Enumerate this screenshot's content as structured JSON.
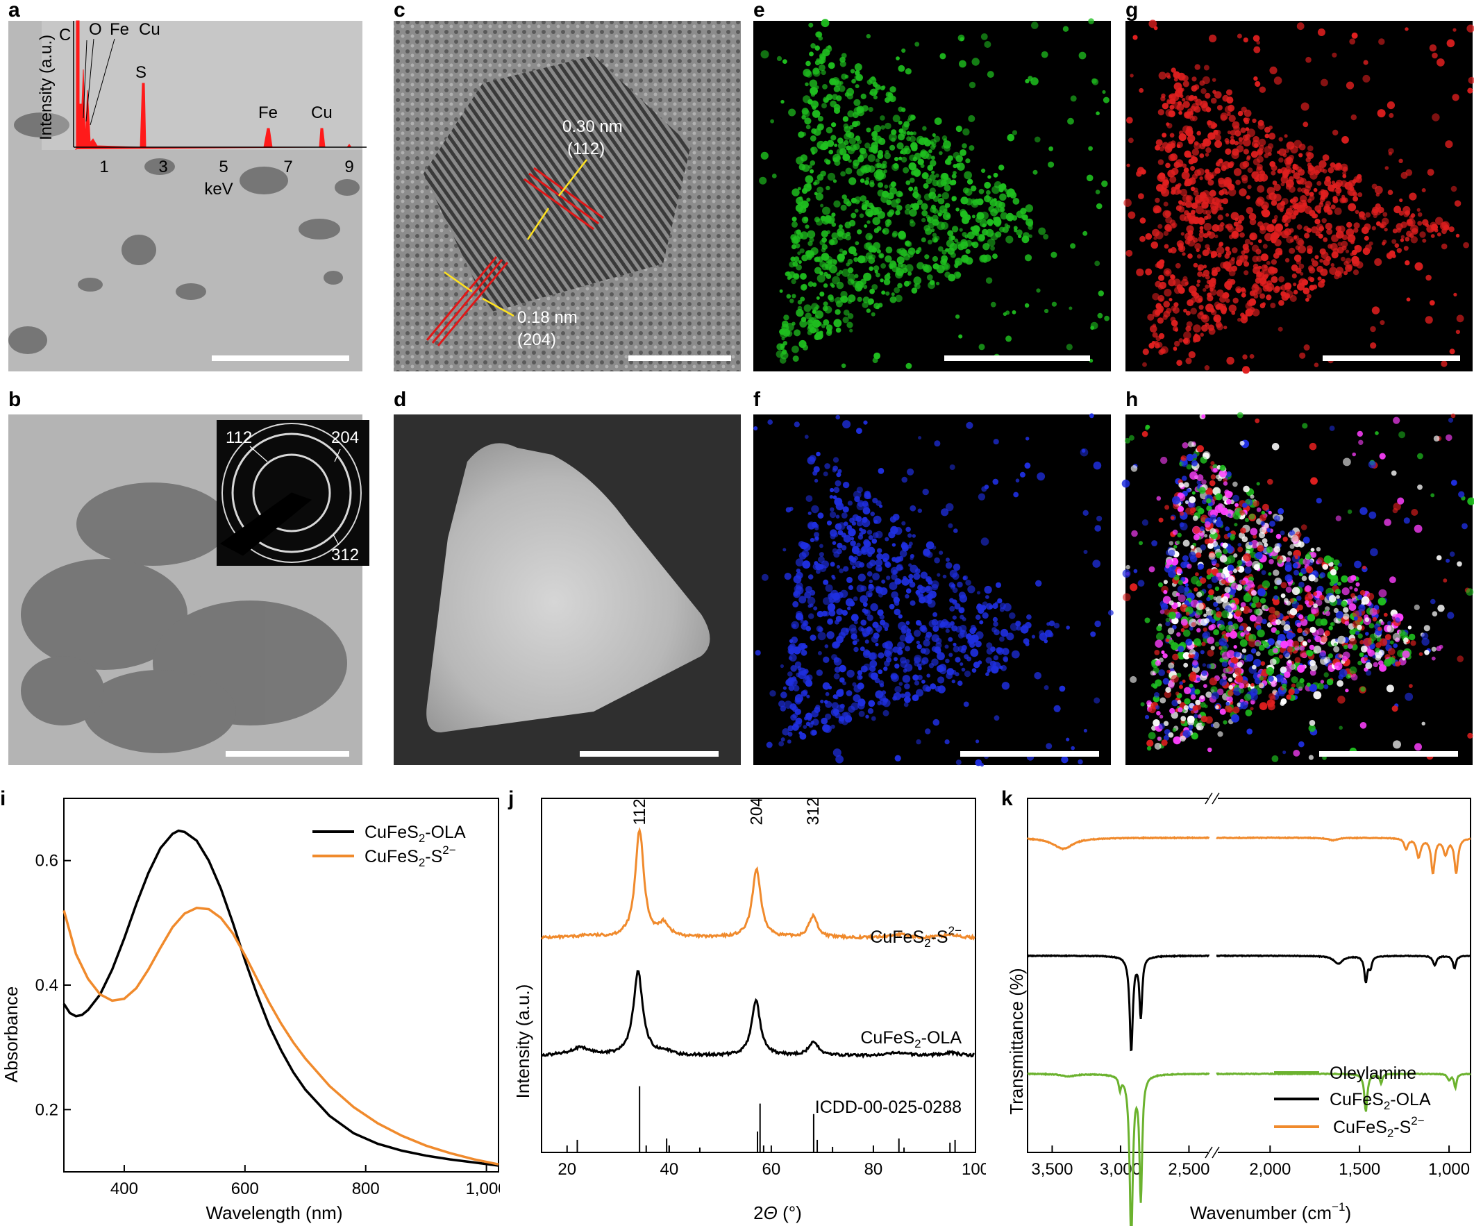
{
  "panels": {
    "a": {
      "label": "a",
      "inset_elements": [
        "C",
        "O",
        "Fe",
        "Cu",
        "S",
        "Fe",
        "Cu"
      ],
      "inset_ylabel": "Intensity (a.u.)",
      "inset_xlabel": "keV",
      "inset_ticks": [
        "1",
        "3",
        "5",
        "7",
        "9"
      ]
    },
    "b": {
      "label": "b",
      "saed_rings": [
        "112",
        "204",
        "312"
      ]
    },
    "c": {
      "label": "c",
      "fringe1": "0.30 nm",
      "fringe1_plane": "(112)",
      "fringe2": "0.18 nm",
      "fringe2_plane": "(204)"
    },
    "d": {
      "label": "d"
    },
    "e": {
      "label": "e",
      "color": "#1fbf1f"
    },
    "f": {
      "label": "f",
      "color": "#1f2fe0"
    },
    "g": {
      "label": "g",
      "color": "#e01f1f"
    },
    "h": {
      "label": "h"
    }
  },
  "chart_data": [
    {
      "panel": "i",
      "type": "line",
      "xlabel": "Wavelength (nm)",
      "ylabel": "Absorbance",
      "xlim": [
        300,
        1020
      ],
      "ylim": [
        0.1,
        0.7
      ],
      "xticks": [
        "400",
        "600",
        "800",
        "1,000"
      ],
      "yticks": [
        "0.2",
        "0.4",
        "0.6"
      ],
      "legend_position": "top-right",
      "series": [
        {
          "name": "CuFeS2-OLA",
          "name_main": "CuFeS",
          "name_sub": "2",
          "name_tail": "-OLA",
          "name_sup": "",
          "color": "#000000",
          "x": [
            300,
            310,
            320,
            330,
            340,
            360,
            380,
            400,
            420,
            440,
            460,
            480,
            490,
            500,
            520,
            540,
            560,
            580,
            600,
            620,
            640,
            660,
            680,
            700,
            740,
            780,
            820,
            860,
            900,
            940,
            980,
            1020
          ],
          "y": [
            0.37,
            0.355,
            0.35,
            0.352,
            0.36,
            0.385,
            0.425,
            0.475,
            0.53,
            0.58,
            0.62,
            0.643,
            0.648,
            0.646,
            0.632,
            0.6,
            0.555,
            0.5,
            0.44,
            0.385,
            0.335,
            0.295,
            0.26,
            0.232,
            0.19,
            0.162,
            0.145,
            0.134,
            0.126,
            0.12,
            0.115,
            0.11
          ]
        },
        {
          "name": "CuFeS2-S2−",
          "name_main": "CuFeS",
          "name_sub": "2",
          "name_tail": "-S",
          "name_sup": "2−",
          "color": "#f08a2c",
          "x": [
            300,
            320,
            340,
            360,
            380,
            400,
            420,
            440,
            460,
            480,
            500,
            520,
            540,
            560,
            580,
            600,
            620,
            640,
            660,
            680,
            700,
            740,
            780,
            820,
            860,
            900,
            940,
            980,
            1020
          ],
          "y": [
            0.52,
            0.45,
            0.41,
            0.385,
            0.375,
            0.378,
            0.395,
            0.425,
            0.46,
            0.493,
            0.515,
            0.524,
            0.522,
            0.508,
            0.483,
            0.448,
            0.41,
            0.372,
            0.338,
            0.308,
            0.282,
            0.238,
            0.204,
            0.178,
            0.158,
            0.142,
            0.13,
            0.12,
            0.112
          ]
        }
      ]
    },
    {
      "panel": "j",
      "type": "line",
      "xlabel": "2Θ (°)",
      "xlabel_main": "2",
      "xlabel_ital": "Θ",
      "xlabel_tail": " (°)",
      "ylabel": "Intensity (a.u.)",
      "xlim": [
        15,
        100
      ],
      "xticks": [
        "20",
        "40",
        "60",
        "80",
        "100"
      ],
      "peak_labels": [
        {
          "text": "112",
          "x": 34.2
        },
        {
          "text": "204",
          "x": 57.1
        },
        {
          "text": "312",
          "x": 68.2
        }
      ],
      "series": [
        {
          "name": "CuFeS2-S2−",
          "name_main": "CuFeS",
          "name_sub": "2",
          "name_tail": "-S",
          "name_sup": "2−",
          "color": "#f08a2c",
          "offset": 2.0,
          "peaks": [
            [
              34.2,
              1.0,
              1.0
            ],
            [
              39.0,
              0.12,
              1.2
            ],
            [
              57.1,
              0.64,
              1.0
            ],
            [
              68.2,
              0.2,
              1.0
            ],
            [
              24.0,
              0.02,
              2.0
            ],
            [
              85.0,
              0.03,
              2.0
            ],
            [
              95.0,
              0.03,
              1.5
            ]
          ]
        },
        {
          "name": "CuFeS2-OLA",
          "name_main": "CuFeS",
          "name_sub": "2",
          "name_tail": "-OLA",
          "name_sup": "",
          "color": "#000000",
          "offset": 0.9,
          "peaks": [
            [
              33.9,
              0.78,
              1.1
            ],
            [
              57.0,
              0.52,
              1.0
            ],
            [
              68.3,
              0.12,
              1.2
            ],
            [
              22.5,
              0.07,
              2.5
            ],
            [
              39.0,
              0.04,
              1.2
            ],
            [
              85.0,
              0.03,
              2.0
            ],
            [
              95.0,
              0.03,
              2.0
            ]
          ]
        }
      ],
      "reference": {
        "name": "ICDD-00-025-0288",
        "sticks": [
          [
            22,
            0.18
          ],
          [
            34.2,
            0.95
          ],
          [
            35.5,
            0.1
          ],
          [
            39.5,
            0.2
          ],
          [
            40,
            0.1
          ],
          [
            46,
            0.07
          ],
          [
            57.3,
            0.3
          ],
          [
            57.8,
            0.7
          ],
          [
            58.5,
            0.1
          ],
          [
            68.3,
            0.55
          ],
          [
            69,
            0.18
          ],
          [
            72,
            0.08
          ],
          [
            85,
            0.2
          ],
          [
            86,
            0.07
          ],
          [
            95,
            0.14
          ],
          [
            96,
            0.18
          ]
        ]
      }
    },
    {
      "panel": "k",
      "type": "line",
      "xlabel": "Wavenumber (cm−1)",
      "xlabel_main": "Wavenumber (cm",
      "xlabel_sup": "−1",
      "xlabel_tail": ")",
      "ylabel": "Transmittance (%)",
      "xaxis_break": [
        2200,
        2400
      ],
      "xticks": [
        "3,500",
        "3,000",
        "2,500",
        "2,000",
        "1,500",
        "1,000"
      ],
      "legend_position": "bottom-right",
      "series": [
        {
          "name": "CuFeS2-S2−",
          "name_main": "CuFeS",
          "name_sub": "2",
          "name_tail": "-S",
          "name_sup": "2−",
          "color": "#f08a2c",
          "offset": 8.0,
          "bands": [
            [
              3420,
              0.35,
              90
            ],
            [
              1650,
              0.08,
              30
            ],
            [
              1240,
              0.35,
              12
            ],
            [
              1170,
              0.6,
              14
            ],
            [
              1090,
              1.1,
              12
            ],
            [
              1020,
              0.5,
              14
            ],
            [
              960,
              1.1,
              12
            ]
          ]
        },
        {
          "name": "CuFeS2-OLA",
          "name_main": "CuFeS",
          "name_sub": "2",
          "name_tail": "-OLA",
          "name_sup": "",
          "color": "#000000",
          "offset": 5.0,
          "bands": [
            [
              2922,
              3.0,
              14
            ],
            [
              2852,
              1.9,
              12
            ],
            [
              1465,
              0.8,
              10
            ],
            [
              1440,
              0.35,
              10
            ],
            [
              1620,
              0.25,
              30
            ],
            [
              1080,
              0.3,
              12
            ],
            [
              970,
              0.4,
              10
            ]
          ]
        },
        {
          "name": "Oleylamine",
          "name_main": "Oleylamine",
          "name_sub": "",
          "name_tail": "",
          "name_sup": "",
          "color": "#6bb22e",
          "offset": 2.0,
          "bands": [
            [
              2922,
              5.2,
              14
            ],
            [
              2852,
              3.9,
              12
            ],
            [
              3005,
              0.4,
              10
            ],
            [
              1465,
              1.2,
              10
            ],
            [
              1380,
              0.3,
              8
            ],
            [
              1000,
              0.2,
              10
            ],
            [
              965,
              0.45,
              8
            ],
            [
              3380,
              0.08,
              60
            ]
          ]
        }
      ]
    }
  ]
}
